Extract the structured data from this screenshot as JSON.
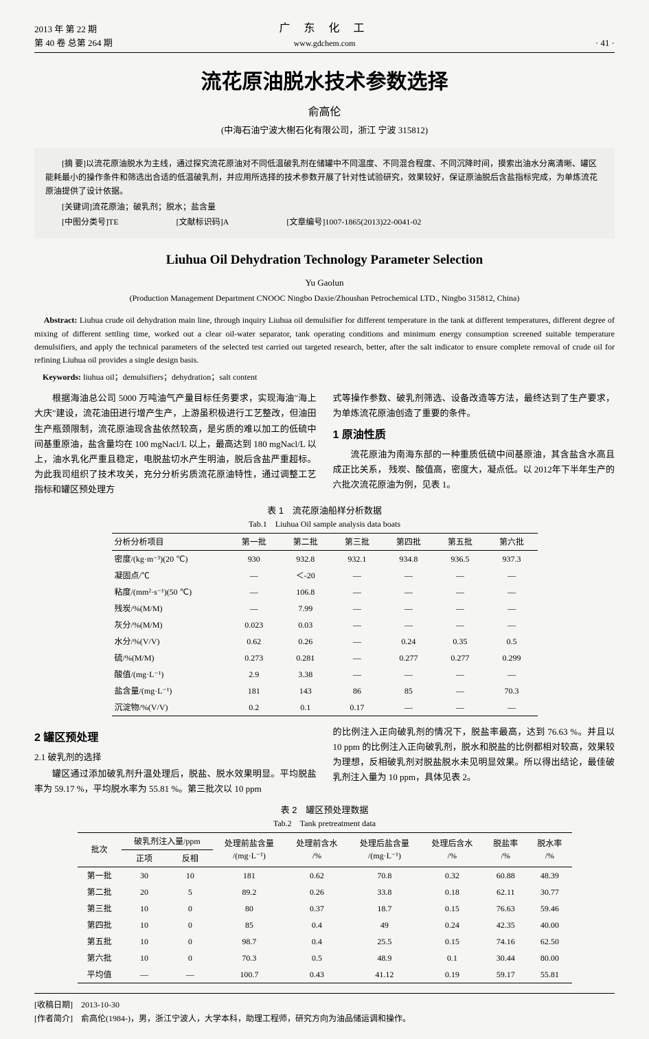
{
  "header": {
    "year_issue": "2013 年 第 22 期",
    "volume_total": "第 40 卷 总第 264 期",
    "journal_cn": "广 东 化 工",
    "journal_url": "www.gdchem.com",
    "page_no": "· 41 ·"
  },
  "title_cn": "流花原油脱水技术参数选择",
  "author_cn": "俞高伦",
  "affiliation_cn": "(中海石油宁波大榭石化有限公司，浙江 宁波 315812)",
  "abstract_cn_label": "[摘 要]",
  "abstract_cn": "以流花原油脱水为主线，通过探究流花原油对不同低温破乳剂在储罐中不同温度、不同混合程度、不同沉降时间，摸索出油水分离清晰、罐区能耗最小的操作条件和筛选出合适的低温破乳剂，并应用所选择的技术参数开展了针对性试验研究，效果较好，保证原油脱后含盐指标完成，为单炼流花原油提供了设计依据。",
  "keywords_cn_label": "[关键词]",
  "keywords_cn": "流花原油；破乳剂；脱水；盐含量",
  "class_no_label": "[中图分类号]",
  "class_no": "TE",
  "doc_code_label": "[文献标识码]",
  "doc_code": "A",
  "article_no_label": "[文章编号]",
  "article_no": "1007-1865(2013)22-0041-02",
  "title_en": "Liuhua Oil Dehydration Technology Parameter Selection",
  "author_en": "Yu Gaolun",
  "affiliation_en": "(Production Management Department CNOOC Ningbo Daxie/Zhoushan Petrochemical LTD., Ningbo 315812, China)",
  "abstract_en_label": "Abstract:",
  "abstract_en": "Liuhua crude oil dehydration main line, through inquiry Liuhua oil demulsifier for different temperature in the tank at different temperatures, different degree of mixing of different settling time, worked out a clear oil-water separator, tank operating conditions and minimum energy consumption screened suitable temperature demulsifiers, and apply the technical parameters of the selected test carried out targeted research, better, after the salt indicator to ensure complete removal of crude oil for refining Liuhua oil provides a single design basis.",
  "keywords_en_label": "Keywords:",
  "keywords_en": "liuhua oil；demulsifiers；dehydration；salt content",
  "intro_left": "根据海油总公司 5000 万吨油气产量目标任务要求，实现海油\"海上大庆\"建设，流花油田进行增产生产，上游虽积极进行工艺整改，但油田生产瓶颈限制，流花原油现含盐依然较高，是劣质的难以加工的低硫中间基重原油，盐含量均在 100 mgNacl/L 以上，最高达到 180 mgNacl/L 以上，油水乳化严重且稳定，电脱盐切水产生明油，脱后含盐严重超标。为此我司组织了技术攻关，充分分析劣质流花原油特性，通过调整工艺指标和罐区预处理方",
  "intro_right": "式等操作参数、破乳剂筛选、设备改造等方法，最终达到了生产要求，为单炼流花原油创造了重要的条件。",
  "s1_title": "1 原油性质",
  "s1_body": "流花原油为南海东部的一种重质低硫中间基原油，其含盐含水高且成正比关系， 残炭、酸值高，密度大，凝点低。以 2012年下半年生产的六批次流花原油为例，见表 1。",
  "table1": {
    "caption_cn": "表 1　流花原油船样分析数据",
    "caption_en": "Tab.1　Liuhua Oil sample analysis data boats",
    "headers": [
      "分析分析项目",
      "第一批",
      "第二批",
      "第三批",
      "第四批",
      "第五批",
      "第六批"
    ],
    "rows": [
      [
        "密度/(kg·m⁻³)(20 ℃)",
        "930",
        "932.8",
        "932.1",
        "934.8",
        "936.5",
        "937.3"
      ],
      [
        "凝固点/℃",
        "—",
        "＜-20",
        "—",
        "—",
        "—",
        "—"
      ],
      [
        "粘度/(mm²·s⁻¹)(50 ℃)",
        "—",
        "106.8",
        "—",
        "—",
        "—",
        "—"
      ],
      [
        "残炭/%(M/M)",
        "—",
        "7.99",
        "—",
        "—",
        "—",
        "—"
      ],
      [
        "灰分/%(M/M)",
        "0.023",
        "0.03",
        "—",
        "—",
        "—",
        "—"
      ],
      [
        "水分/%(V/V)",
        "0.62",
        "0.26",
        "—",
        "0.24",
        "0.35",
        "0.5"
      ],
      [
        "硫/%(M/M)",
        "0.273",
        "0.281",
        "—",
        "0.277",
        "0.277",
        "0.299"
      ],
      [
        "酸值/(mg·L⁻¹)",
        "2.9",
        "3.38",
        "—",
        "—",
        "—",
        "—"
      ],
      [
        "盐含量/(mg·L⁻¹)",
        "181",
        "143",
        "86",
        "85",
        "—",
        "70.3"
      ],
      [
        "沉淀物/%(V/V)",
        "0.2",
        "0.1",
        "0.17",
        "—",
        "—",
        "—"
      ]
    ]
  },
  "s2_title": "2 罐区预处理",
  "s21_title": "2.1 破乳剂的选择",
  "s2_left": "罐区通过添加破乳剂升温处理后，脱盐、脱水效果明显。平均脱盐率为 59.17 %，平均脱水率为 55.81 %。第三批次以 10 ppm",
  "s2_right": "的比例注入正向破乳剂的情况下，脱盐率最高，达到 76.63 %。并且以 10 ppm 的比例注入正向破乳剂，脱水和脱盐的比例都相对较高，效果较为理想，反相破乳剂对脱盐脱水未见明显效果。所以得出结论，最佳破乳剂注入量为 10 ppm，具体见表 2。",
  "table2": {
    "caption_cn": "表 2　罐区预处理数据",
    "caption_en": "Tab.2　Tank pretreatment data",
    "group_header": "破乳剂注入量/ppm",
    "headers": [
      "批次",
      "正项",
      "反相",
      "处理前盐含量 /(mg·L⁻¹)",
      "处理前含水 /%",
      "处理后盐含量 /(mg·L⁻¹)",
      "处理后含水 /%",
      "脱盐率 /%",
      "脱水率 /%"
    ],
    "rows": [
      [
        "第一批",
        "30",
        "10",
        "181",
        "0.62",
        "70.8",
        "0.32",
        "60.88",
        "48.39"
      ],
      [
        "第二批",
        "20",
        "5",
        "89.2",
        "0.26",
        "33.8",
        "0.18",
        "62.11",
        "30.77"
      ],
      [
        "第三批",
        "10",
        "0",
        "80",
        "0.37",
        "18.7",
        "0.15",
        "76.63",
        "59.46"
      ],
      [
        "第四批",
        "10",
        "0",
        "85",
        "0.4",
        "49",
        "0.24",
        "42.35",
        "40.00"
      ],
      [
        "第五批",
        "10",
        "0",
        "98.7",
        "0.4",
        "25.5",
        "0.15",
        "74.16",
        "62.50"
      ],
      [
        "第六批",
        "10",
        "0",
        "70.3",
        "0.5",
        "48.9",
        "0.1",
        "30.44",
        "80.00"
      ],
      [
        "平均值",
        "—",
        "—",
        "100.7",
        "0.43",
        "41.12",
        "0.19",
        "59.17",
        "55.81"
      ]
    ]
  },
  "footer": {
    "recv_label": "[收稿日期]",
    "recv_date": "2013-10-30",
    "author_label": "[作者简介]",
    "author_bio": "俞高伦(1984-)，男，浙江宁波人，大学本科，助理工程师，研究方向为油品储运调和操作。"
  }
}
